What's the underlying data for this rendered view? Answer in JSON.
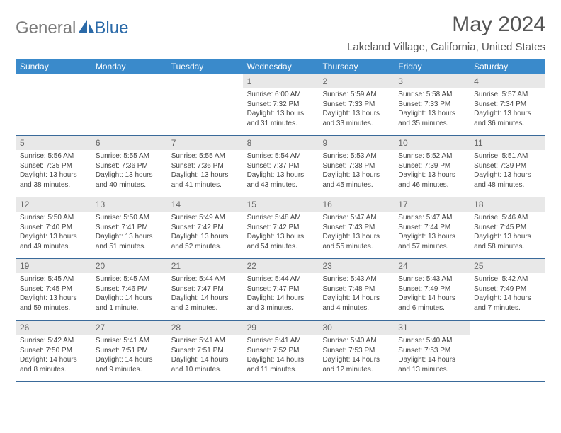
{
  "logo": {
    "text_left": "General",
    "text_right": "Blue"
  },
  "title": "May 2024",
  "location": "Lakeland Village, California, United States",
  "colors": {
    "header_bar": "#3a8acb",
    "week_border": "#3a6a9a",
    "daynum_bg": "#e8e8e8",
    "text": "#444444",
    "title": "#555555",
    "logo_gray": "#7a7a7a",
    "logo_blue": "#2b6aa8"
  },
  "weekdays": [
    "Sunday",
    "Monday",
    "Tuesday",
    "Wednesday",
    "Thursday",
    "Friday",
    "Saturday"
  ],
  "weeks": [
    [
      null,
      null,
      null,
      {
        "n": "1",
        "sr": "6:00 AM",
        "ss": "7:32 PM",
        "dl1": "Daylight: 13 hours",
        "dl2": "and 31 minutes."
      },
      {
        "n": "2",
        "sr": "5:59 AM",
        "ss": "7:33 PM",
        "dl1": "Daylight: 13 hours",
        "dl2": "and 33 minutes."
      },
      {
        "n": "3",
        "sr": "5:58 AM",
        "ss": "7:33 PM",
        "dl1": "Daylight: 13 hours",
        "dl2": "and 35 minutes."
      },
      {
        "n": "4",
        "sr": "5:57 AM",
        "ss": "7:34 PM",
        "dl1": "Daylight: 13 hours",
        "dl2": "and 36 minutes."
      }
    ],
    [
      {
        "n": "5",
        "sr": "5:56 AM",
        "ss": "7:35 PM",
        "dl1": "Daylight: 13 hours",
        "dl2": "and 38 minutes."
      },
      {
        "n": "6",
        "sr": "5:55 AM",
        "ss": "7:36 PM",
        "dl1": "Daylight: 13 hours",
        "dl2": "and 40 minutes."
      },
      {
        "n": "7",
        "sr": "5:55 AM",
        "ss": "7:36 PM",
        "dl1": "Daylight: 13 hours",
        "dl2": "and 41 minutes."
      },
      {
        "n": "8",
        "sr": "5:54 AM",
        "ss": "7:37 PM",
        "dl1": "Daylight: 13 hours",
        "dl2": "and 43 minutes."
      },
      {
        "n": "9",
        "sr": "5:53 AM",
        "ss": "7:38 PM",
        "dl1": "Daylight: 13 hours",
        "dl2": "and 45 minutes."
      },
      {
        "n": "10",
        "sr": "5:52 AM",
        "ss": "7:39 PM",
        "dl1": "Daylight: 13 hours",
        "dl2": "and 46 minutes."
      },
      {
        "n": "11",
        "sr": "5:51 AM",
        "ss": "7:39 PM",
        "dl1": "Daylight: 13 hours",
        "dl2": "and 48 minutes."
      }
    ],
    [
      {
        "n": "12",
        "sr": "5:50 AM",
        "ss": "7:40 PM",
        "dl1": "Daylight: 13 hours",
        "dl2": "and 49 minutes."
      },
      {
        "n": "13",
        "sr": "5:50 AM",
        "ss": "7:41 PM",
        "dl1": "Daylight: 13 hours",
        "dl2": "and 51 minutes."
      },
      {
        "n": "14",
        "sr": "5:49 AM",
        "ss": "7:42 PM",
        "dl1": "Daylight: 13 hours",
        "dl2": "and 52 minutes."
      },
      {
        "n": "15",
        "sr": "5:48 AM",
        "ss": "7:42 PM",
        "dl1": "Daylight: 13 hours",
        "dl2": "and 54 minutes."
      },
      {
        "n": "16",
        "sr": "5:47 AM",
        "ss": "7:43 PM",
        "dl1": "Daylight: 13 hours",
        "dl2": "and 55 minutes."
      },
      {
        "n": "17",
        "sr": "5:47 AM",
        "ss": "7:44 PM",
        "dl1": "Daylight: 13 hours",
        "dl2": "and 57 minutes."
      },
      {
        "n": "18",
        "sr": "5:46 AM",
        "ss": "7:45 PM",
        "dl1": "Daylight: 13 hours",
        "dl2": "and 58 minutes."
      }
    ],
    [
      {
        "n": "19",
        "sr": "5:45 AM",
        "ss": "7:45 PM",
        "dl1": "Daylight: 13 hours",
        "dl2": "and 59 minutes."
      },
      {
        "n": "20",
        "sr": "5:45 AM",
        "ss": "7:46 PM",
        "dl1": "Daylight: 14 hours",
        "dl2": "and 1 minute."
      },
      {
        "n": "21",
        "sr": "5:44 AM",
        "ss": "7:47 PM",
        "dl1": "Daylight: 14 hours",
        "dl2": "and 2 minutes."
      },
      {
        "n": "22",
        "sr": "5:44 AM",
        "ss": "7:47 PM",
        "dl1": "Daylight: 14 hours",
        "dl2": "and 3 minutes."
      },
      {
        "n": "23",
        "sr": "5:43 AM",
        "ss": "7:48 PM",
        "dl1": "Daylight: 14 hours",
        "dl2": "and 4 minutes."
      },
      {
        "n": "24",
        "sr": "5:43 AM",
        "ss": "7:49 PM",
        "dl1": "Daylight: 14 hours",
        "dl2": "and 6 minutes."
      },
      {
        "n": "25",
        "sr": "5:42 AM",
        "ss": "7:49 PM",
        "dl1": "Daylight: 14 hours",
        "dl2": "and 7 minutes."
      }
    ],
    [
      {
        "n": "26",
        "sr": "5:42 AM",
        "ss": "7:50 PM",
        "dl1": "Daylight: 14 hours",
        "dl2": "and 8 minutes."
      },
      {
        "n": "27",
        "sr": "5:41 AM",
        "ss": "7:51 PM",
        "dl1": "Daylight: 14 hours",
        "dl2": "and 9 minutes."
      },
      {
        "n": "28",
        "sr": "5:41 AM",
        "ss": "7:51 PM",
        "dl1": "Daylight: 14 hours",
        "dl2": "and 10 minutes."
      },
      {
        "n": "29",
        "sr": "5:41 AM",
        "ss": "7:52 PM",
        "dl1": "Daylight: 14 hours",
        "dl2": "and 11 minutes."
      },
      {
        "n": "30",
        "sr": "5:40 AM",
        "ss": "7:53 PM",
        "dl1": "Daylight: 14 hours",
        "dl2": "and 12 minutes."
      },
      {
        "n": "31",
        "sr": "5:40 AM",
        "ss": "7:53 PM",
        "dl1": "Daylight: 14 hours",
        "dl2": "and 13 minutes."
      },
      null
    ]
  ]
}
